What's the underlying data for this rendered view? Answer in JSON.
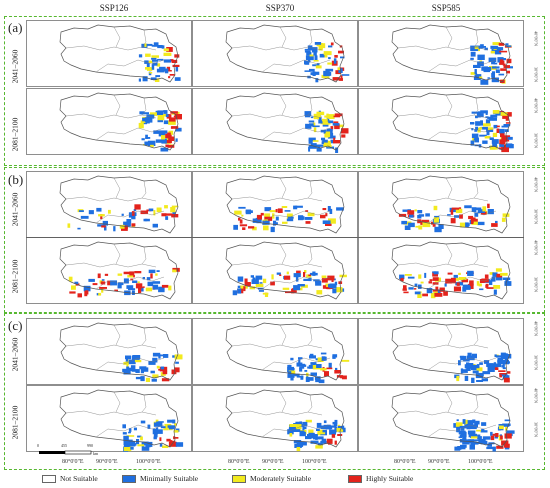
{
  "columns": [
    "SSP126",
    "SSP370",
    "SSP585"
  ],
  "groups": [
    {
      "label": "(a)",
      "rows": [
        "2041–2060",
        "2081–2100"
      ]
    },
    {
      "label": "(b)",
      "rows": [
        "2041–2060",
        "2081–2100"
      ]
    },
    {
      "label": "(c)",
      "rows": [
        "2041–2060",
        "2081–2100"
      ]
    }
  ],
  "lat_labels": [
    "40°0'0\"N",
    "30°0'0\"N"
  ],
  "lon_labels": [
    "80°0'0\"E",
    "90°0'0\"E",
    "100°0'0\"E"
  ],
  "scale": {
    "ticks": [
      "0",
      "455",
      "990"
    ],
    "unit": "km"
  },
  "legend": [
    {
      "label": "Not Suitable",
      "color": "#ffffff"
    },
    {
      "label": "Minimally Suitable",
      "color": "#1f6fe0"
    },
    {
      "label": "Moderately Suitable",
      "color": "#f2ea1e"
    },
    {
      "label": "Highly Suitable",
      "color": "#e3231c"
    }
  ]
}
